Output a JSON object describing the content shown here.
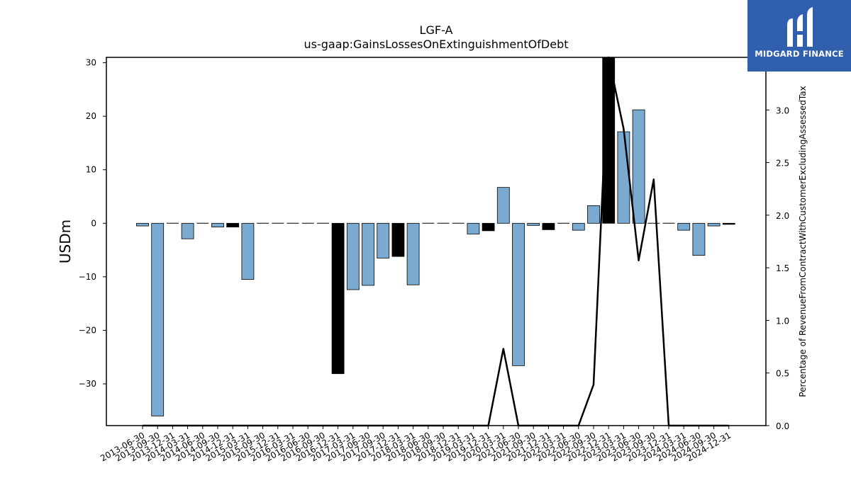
{
  "chart_data": {
    "type": "bar",
    "title": "LGF-A",
    "subtitle": "us-gaap:GainsLossesOnExtinguishmentOfDebt",
    "ylabel": "USDm",
    "ylabel_right": "Percentage of RevenueFromContractWithCustomerExcludingAssessedTax",
    "ylim": [
      -37.8,
      31.0
    ],
    "ylim_right": [
      0.0,
      3.5
    ],
    "yticks": [
      30,
      20,
      10,
      0,
      -10,
      -20,
      -30
    ],
    "yticks_right": [
      0.0,
      0.5,
      1.0,
      1.5,
      2.0,
      2.5,
      3.0
    ],
    "categories": [
      "2013-06-30",
      "2013-09-30",
      "2013-12-31",
      "2014-03-31",
      "2014-06-30",
      "2014-09-30",
      "2014-12-31",
      "2015-03-31",
      "2015-09-30",
      "2015-12-31",
      "2016-03-31",
      "2016-06-30",
      "2016-09-30",
      "2016-12-31",
      "2017-03-31",
      "2017-06-30",
      "2017-09-30",
      "2017-12-31",
      "2018-03-31",
      "2018-06-30",
      "2018-09-30",
      "2018-12-31",
      "2019-03-31",
      "2019-12-31",
      "2020-03-31",
      "2021-06-30",
      "2021-09-30",
      "2021-12-31",
      "2022-03-31",
      "2022-06-30",
      "2022-09-30",
      "2022-12-31",
      "2023-03-31",
      "2023-06-30",
      "2023-09-30",
      "2023-12-31",
      "2024-03-31",
      "2024-06-30",
      "2024-09-30",
      "2024-12-31"
    ],
    "series": [
      {
        "values": [
          -0.5,
          -36.0,
          0,
          -2.9,
          0,
          -0.7,
          -0.7,
          -10.5,
          0,
          0,
          0,
          0,
          0,
          -28.1,
          -12.4,
          -11.6,
          -6.5,
          -6.2,
          -11.5,
          0,
          0,
          0,
          -2.0,
          -1.4,
          6.7,
          -26.6,
          -0.4,
          -1.2,
          0,
          -1.3,
          3.3,
          31.0,
          17.1,
          21.2,
          0,
          0,
          -1.3,
          -6.0,
          -0.5,
          -0.2
        ],
        "negative_flag": [
          false,
          false,
          false,
          false,
          false,
          false,
          true,
          false,
          false,
          false,
          false,
          false,
          false,
          true,
          false,
          false,
          false,
          true,
          false,
          false,
          false,
          false,
          false,
          true,
          false,
          false,
          false,
          true,
          false,
          false,
          false,
          true,
          false,
          false,
          false,
          false,
          false,
          false,
          false,
          true
        ]
      },
      {
        "axis": "right",
        "values": [
          0,
          0,
          0,
          0,
          0,
          0,
          0,
          0,
          0,
          0,
          0,
          0,
          0,
          0,
          0,
          0,
          0,
          0,
          0,
          0,
          0,
          0,
          0,
          0,
          0.73,
          0,
          0,
          0,
          0,
          0,
          0.39,
          3.5,
          2.82,
          1.57,
          2.34,
          0,
          0,
          0,
          0,
          0
        ]
      }
    ],
    "colors": {
      "bar": "#7aaad0",
      "bar_alt": "#000000",
      "line": "#000000"
    }
  },
  "brand": {
    "name": "MIDGARD FINANCE",
    "bg": "#2f5fad"
  }
}
